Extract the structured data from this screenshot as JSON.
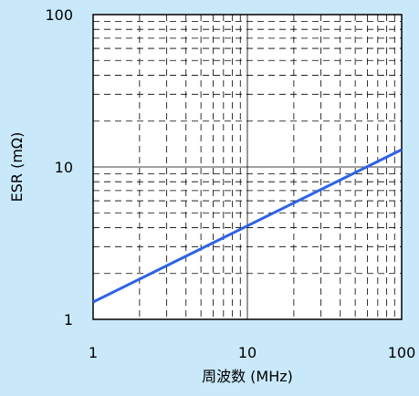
{
  "chart_data": {
    "type": "line",
    "title": "",
    "xlabel": "周波数 (MHz)",
    "ylabel": "ESR (mΩ)",
    "x_scale": "log",
    "y_scale": "log",
    "xlim": [
      1,
      100
    ],
    "ylim": [
      1,
      100
    ],
    "x_ticks": [
      "1",
      "10",
      "100"
    ],
    "y_ticks": [
      "100",
      "10",
      "1"
    ],
    "grid": true,
    "series": [
      {
        "x": [
          1,
          100
        ],
        "y": [
          1.3,
          13.0
        ]
      }
    ],
    "colors": {
      "background": "#c9e9fb",
      "plot_area": "#ffffff",
      "line": "#2f63e6",
      "grid": "#000000"
    }
  }
}
